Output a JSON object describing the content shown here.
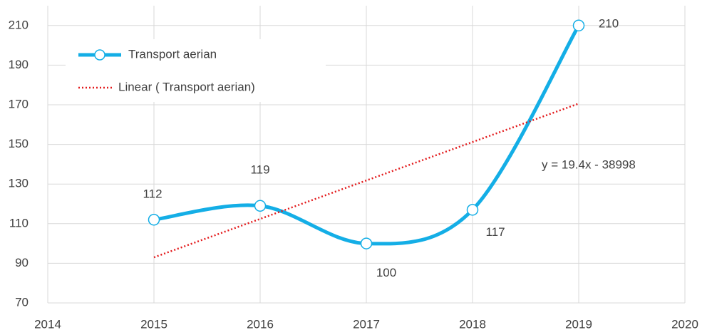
{
  "chart_data": {
    "type": "line",
    "x": [
      2015,
      2016,
      2017,
      2018,
      2019
    ],
    "series": [
      {
        "name": "Transport aerian",
        "color": "#14aee6",
        "values": [
          112,
          119,
          100,
          117,
          210
        ]
      },
      {
        "name": "Linear (  Transport aerian)",
        "color": "#e31a1c",
        "values": [
          93,
          112.4,
          131.8,
          151.2,
          170.6
        ],
        "trendline": true
      }
    ],
    "annotations": [
      "y = 19.4x - 38998"
    ],
    "xlim": [
      2014,
      2020
    ],
    "xticks": [
      2014,
      2015,
      2016,
      2017,
      2018,
      2019,
      2020
    ],
    "ylim": [
      70,
      220
    ],
    "yticks": [
      70,
      90,
      110,
      130,
      150,
      170,
      190,
      210
    ],
    "grid": true,
    "legend": "upper left"
  }
}
